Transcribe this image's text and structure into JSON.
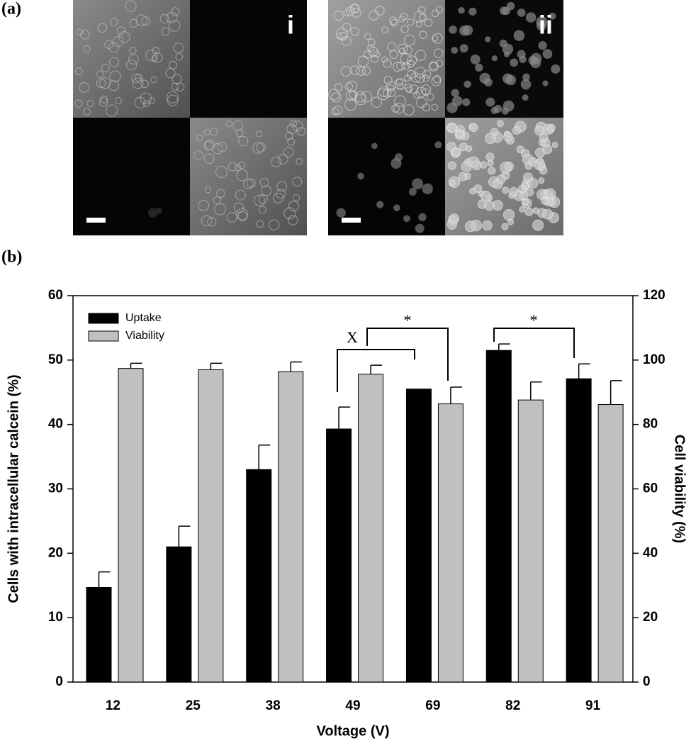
{
  "panel_labels": {
    "a": "(a)",
    "b": "(b)",
    "i": "i",
    "ii": "ii"
  },
  "chart_data": {
    "type": "bar",
    "x_label": "Voltage (V)",
    "y_label": "Cells with intracellular calcein (%)",
    "y2_label": "Cell viability (%)",
    "categories": [
      "12",
      "25",
      "38",
      "49",
      "69",
      "82",
      "91"
    ],
    "series": [
      {
        "name": "Uptake",
        "color": "#000000",
        "values": [
          14.7,
          21,
          33,
          39.3,
          45.5,
          51.5,
          47.1
        ],
        "errors": [
          2.4,
          3.2,
          3.8,
          3.4,
          null,
          1.0,
          2.3
        ]
      },
      {
        "name": "Viability",
        "color": "#c0c0c0",
        "axis": "y2",
        "values": [
          97.4,
          97,
          96.4,
          95.6,
          86.4,
          87.6,
          86.2
        ],
        "errors": [
          1.6,
          2,
          3,
          2.8,
          5.2,
          5.6,
          7.4
        ]
      }
    ],
    "ylim": [
      0,
      60
    ],
    "yticks": [
      0,
      10,
      20,
      30,
      40,
      50,
      60
    ],
    "y2lim": [
      0,
      120
    ],
    "y2ticks": [
      0,
      20,
      40,
      60,
      80,
      100,
      120
    ],
    "legend": "top-left",
    "annotations": [
      "X",
      "*",
      "*"
    ]
  }
}
